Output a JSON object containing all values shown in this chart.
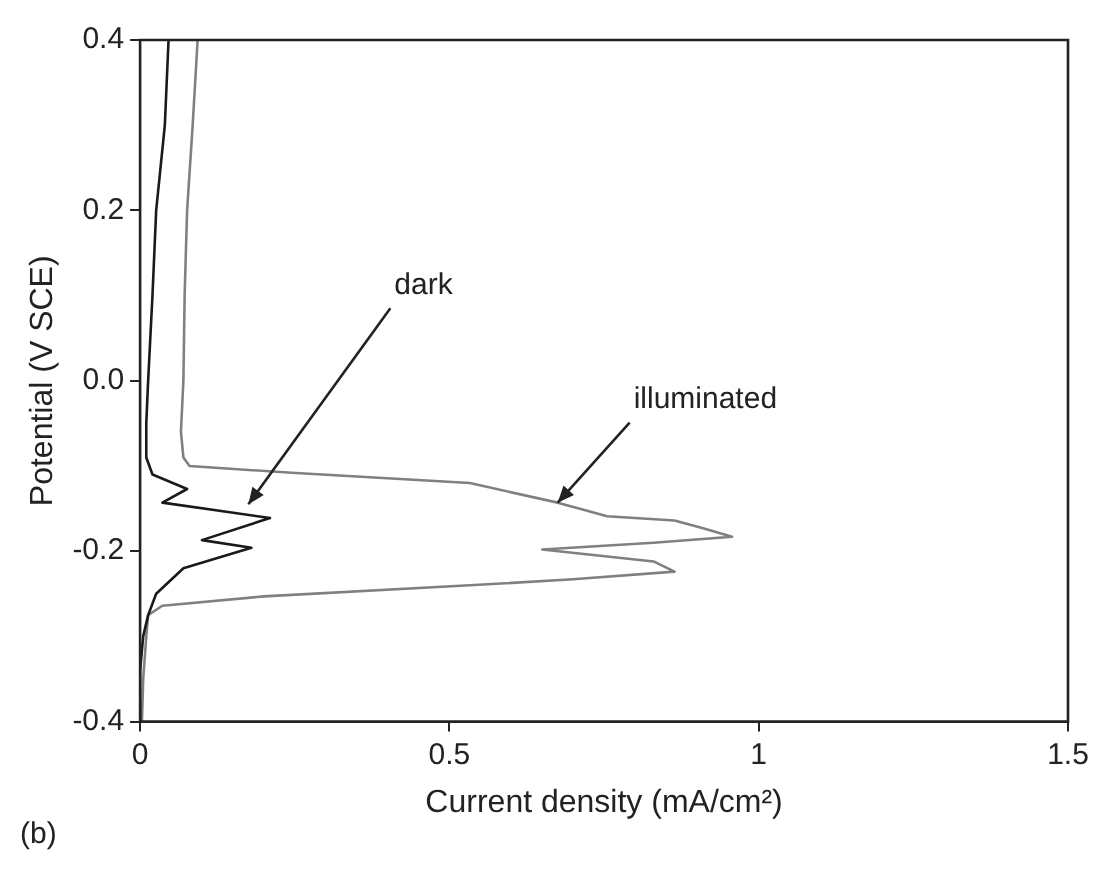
{
  "chart_data": {
    "type": "line",
    "xlabel": "Current density (mA/cm²)",
    "ylabel": "Potential (V SCE)",
    "xlim": [
      0,
      1.5
    ],
    "xticks": [
      0,
      0.5,
      1,
      1.5
    ],
    "ylim": [
      -0.4,
      0.4
    ],
    "yticks": [
      {
        "value": -0.4,
        "label": "-0.4"
      },
      -0.2,
      {
        "value": 0,
        "label": "0.0"
      },
      0.2,
      0.4
    ],
    "grid": false,
    "legend": false,
    "marker": "none",
    "line_style": "solid",
    "series": [
      {
        "color": "#1a1a1a",
        "x": [
          0.046,
          0.04,
          0.033,
          0.026,
          0.02,
          0.013,
          0.01,
          0.01,
          0.02,
          0.076,
          0.036,
          0.21,
          0.1,
          0.18,
          0.07,
          0.026,
          0.013,
          0.005,
          0,
          0
        ],
        "values": [
          0.4,
          0.3,
          0.25,
          0.2,
          0.1,
          0,
          -0.05,
          -0.09,
          -0.11,
          -0.127,
          -0.143,
          -0.161,
          -0.187,
          -0.196,
          -0.22,
          -0.25,
          -0.275,
          -0.3,
          -0.34,
          -0.4
        ]
      },
      {
        "color": "#808080",
        "x": [
          0.093,
          0.085,
          0.076,
          0.072,
          0.07,
          0.066,
          0.07,
          0.08,
          0.245,
          0.533,
          0.675,
          0.755,
          0.864,
          0.91,
          0.957,
          0.83,
          0.65,
          0.83,
          0.864,
          0.7,
          0.533,
          0.2,
          0.036,
          0.013,
          0.01,
          0.005,
          0.003
        ],
        "values": [
          0.4,
          0.3,
          0.2,
          0.1,
          0,
          -0.06,
          -0.09,
          -0.1,
          -0.108,
          -0.12,
          -0.143,
          -0.159,
          -0.164,
          -0.173,
          -0.183,
          -0.19,
          -0.198,
          -0.212,
          -0.224,
          -0.233,
          -0.24,
          -0.253,
          -0.264,
          -0.275,
          -0.3,
          -0.35,
          -0.4
        ]
      }
    ],
    "annotations": [
      {
        "text": "dark",
        "x": 0.175,
        "y": -0.145
      },
      {
        "text": "illuminated",
        "x": 0.675,
        "y": -0.143
      },
      "(b)"
    ]
  }
}
